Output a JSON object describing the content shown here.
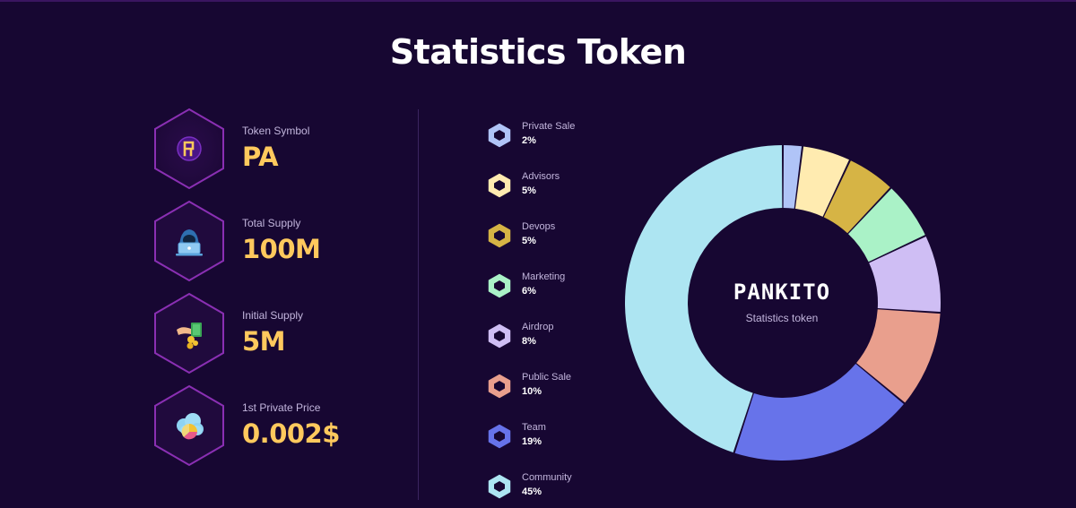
{
  "page": {
    "title": "Statistics Token"
  },
  "stats": [
    {
      "label": "Token Symbol",
      "value": "PA",
      "icon": "token-logo-icon"
    },
    {
      "label": "Total Supply",
      "value": "100M",
      "icon": "hooded-laptop-icon"
    },
    {
      "label": "Initial Supply",
      "value": "5M",
      "icon": "hand-coins-icon"
    },
    {
      "label": "1st Private Price",
      "value": "0.002$",
      "icon": "cloud-chart-icon"
    }
  ],
  "chart_center": {
    "brand": "PANKITO",
    "subtitle": "Statistics token"
  },
  "chart_data": {
    "type": "pie",
    "variant": "donut",
    "categories": [
      "Private Sale",
      "Advisors",
      "Devops",
      "Marketing",
      "Airdrop",
      "Public Sale",
      "Team",
      "Community"
    ],
    "values": [
      2,
      5,
      5,
      6,
      8,
      10,
      19,
      45
    ],
    "labels": [
      "2%",
      "5%",
      "5%",
      "6%",
      "8%",
      "10%",
      "19%",
      "45%"
    ],
    "colors": [
      "#b0c4f7",
      "#ffebb0",
      "#d6b445",
      "#aaf2c7",
      "#cfbef4",
      "#e99f8d",
      "#6773ea",
      "#ade5f2"
    ],
    "legend_position": "left"
  },
  "colors": {
    "background": "#170732",
    "hex_border": "#8a2fb3",
    "accent_value": "#ffc95d"
  }
}
